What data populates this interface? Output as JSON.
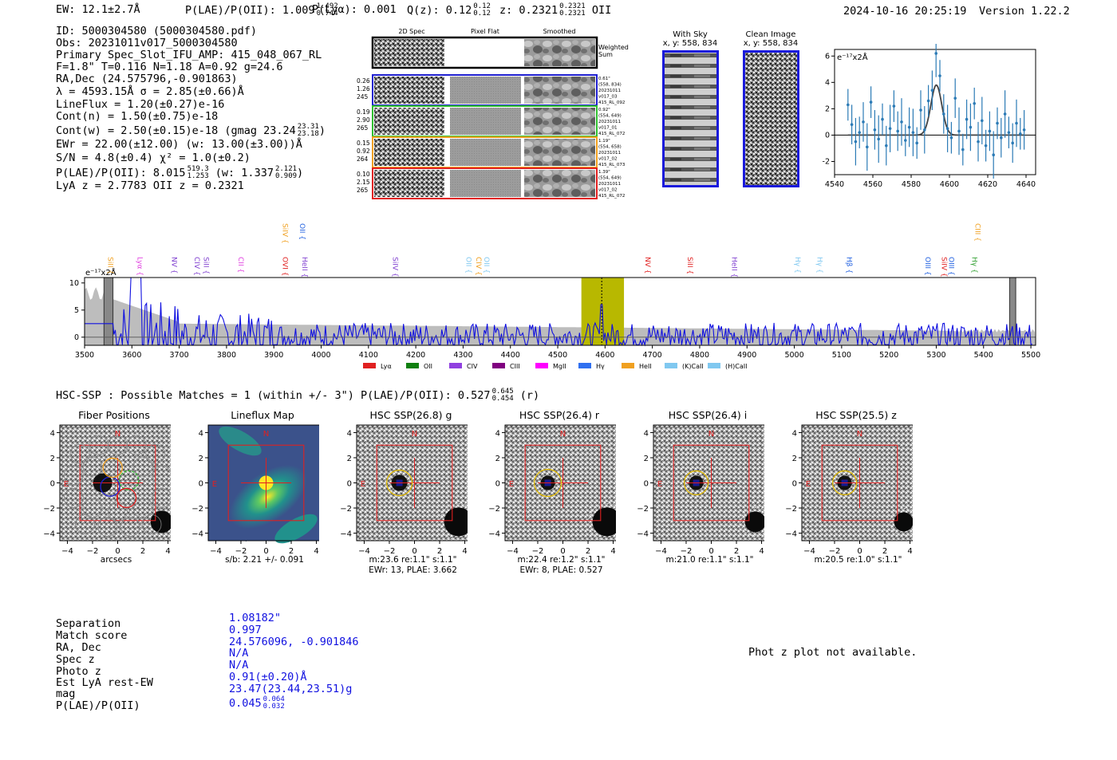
{
  "header": {
    "ew_text": "EW: 12.1±2.7Å",
    "plae_text": "P(LAE)/P(OII): 1.009",
    "plae_hi": "1.492",
    "plae_lo": "0.744",
    "plya_text": "P(Lyα): 0.001",
    "qz_text": "Q(z): 0.12",
    "qz_hi": "0.12",
    "qz_lo": "0.12",
    "z_text": "z: 0.2321",
    "z_hi": "0.2321",
    "z_lo": "0.2321",
    "z_line": "OII",
    "timestamp": "2024-10-16 20:25:19",
    "version": "Version 1.22.2"
  },
  "info": {
    "id": "ID: 5000304580 (5000304580.pdf)",
    "obs": "Obs: 20231011v017_5000304580",
    "slot": "Primary Spec_Slot_IFU_AMP: 415_048_067_RL",
    "params": "F=1.8\"  T=0.116  N=1.18  A=0.92  g=24.6",
    "radec": "RA,Dec (24.575796,-0.901863)",
    "lambda": "λ = 4593.15Å  σ = 2.85(±0.66)Å",
    "lineflux": "LineFlux = 1.20(±0.27)e-16",
    "contn": "Cont(n) = 1.50(±0.75)e-18",
    "contw": "Cont(w) = 2.50(±0.15)e-18 (gmag 23.24",
    "contw_hi": "23.31",
    "contw_lo": "23.18",
    "contw_end": ")",
    "ewr": "EWr = 22.00(±12.00) (w: 13.00(±3.00))Å",
    "sn": "S/N = 4.8(±0.4)  χ² = 1.0(±0.2)",
    "plae": "P(LAE)/P(OII): 8.015",
    "plae_hi": "519.3",
    "plae_lo": "1.253",
    "plae_w": "(w: 1.337",
    "plae_w_hi": "2.121",
    "plae_w_lo": "0.909",
    "plae_w_end": ")",
    "lyaz": "LyA z = 2.7783  OII z = 0.2321"
  },
  "cutouts": {
    "col_labels": [
      "2D Spec",
      "Pixel Flat",
      "Smoothed"
    ],
    "weighted_label": "Weighted\nSum",
    "rows": [
      {
        "left": [
          "0.26",
          "1.26",
          "245"
        ],
        "right": [
          "0.61\"",
          "(558, 834)",
          "20231011",
          "v017_03",
          "415_RL_092"
        ],
        "color": "#2020d0"
      },
      {
        "left": [
          "0.19",
          "2.90",
          "265"
        ],
        "right": [
          "0.92\"",
          "(554, 649)",
          "20231011",
          "v017_01",
          "415_RL_072"
        ],
        "color": "#30c030"
      },
      {
        "left": [
          "0.15",
          "0.92",
          "264"
        ],
        "right": [
          "1.19\"",
          "(554, 658)",
          "20231011",
          "v017_02",
          "415_RL_073"
        ],
        "color": "#f0a020"
      },
      {
        "left": [
          "0.10",
          "2.15",
          "265"
        ],
        "right": [
          "1.39\"",
          "(554, 649)",
          "20231011",
          "v017_02",
          "415_RL_072"
        ],
        "color": "#e02020"
      }
    ]
  },
  "with_sky": {
    "title": "With Sky",
    "coords": "x, y: 558, 834"
  },
  "clean_image": {
    "title": "Clean Image",
    "coords": "x, y: 558, 834"
  },
  "line_fit": {
    "unit_label": "e⁻¹⁷x2Å",
    "x_ticks": [
      "4540",
      "4560",
      "4580",
      "4600",
      "4620",
      "4640"
    ],
    "y_ticks": [
      "6",
      "4",
      "2",
      "0",
      "-2"
    ]
  },
  "full_spectrum": {
    "unit_label": "e⁻¹⁷x2Å",
    "x_ticks": [
      "3500",
      "3600",
      "3700",
      "3800",
      "3900",
      "4000",
      "4100",
      "4200",
      "4300",
      "4400",
      "4500",
      "4600",
      "4700",
      "4800",
      "4900",
      "5000",
      "5100",
      "5200",
      "5300",
      "5400",
      "5500"
    ],
    "y_ticks": [
      "10",
      "5",
      "0"
    ],
    "lines": [
      {
        "name": "SiII",
        "color": "#f0a020",
        "wave": 3545
      },
      {
        "name": "Lyα",
        "color": "#e040e0",
        "wave": 3607
      },
      {
        "name": "NV",
        "color": "#8040d0",
        "wave": 3680
      },
      {
        "name": "CIV",
        "color": "#8040d0",
        "wave": 3728
      },
      {
        "name": "SiII",
        "color": "#8040d0",
        "wave": 3747
      },
      {
        "name": "CII",
        "color": "#e040e0",
        "wave": 3820
      },
      {
        "name": "SiIV",
        "color": "#f0a020",
        "wave": 3914
      },
      {
        "name": "OII",
        "color": "#2060e0",
        "wave": 3950
      },
      {
        "name": "OVI",
        "color": "#e02020",
        "wave": 3914
      },
      {
        "name": "HeII",
        "color": "#8040d0",
        "wave": 3955
      },
      {
        "name": "SiIV",
        "color": "#8040d0",
        "wave": 4147
      },
      {
        "name": "OII",
        "color": "#80c8f0",
        "wave": 4302
      },
      {
        "name": "CIV",
        "color": "#f0a020",
        "wave": 4323
      },
      {
        "name": "OII",
        "color": "#80c8f0",
        "wave": 4340
      },
      {
        "name": "NV",
        "color": "#e02020",
        "wave": 4680
      },
      {
        "name": "SiII",
        "color": "#e02020",
        "wave": 4770
      },
      {
        "name": "HeII",
        "color": "#8040d0",
        "wave": 4863
      },
      {
        "name": "Hγ",
        "color": "#80c8f0",
        "wave": 4997
      },
      {
        "name": "Hγ",
        "color": "#80c8f0",
        "wave": 5044
      },
      {
        "name": "Hβ",
        "color": "#2060e0",
        "wave": 5106
      },
      {
        "name": "OIII",
        "color": "#2060e0",
        "wave": 5272
      },
      {
        "name": "SiIV",
        "color": "#e02020",
        "wave": 5307
      },
      {
        "name": "OIII",
        "color": "#2060e0",
        "wave": 5322
      },
      {
        "name": "CIII",
        "color": "#f0a020",
        "wave": 5378
      },
      {
        "name": "Hγ",
        "color": "#30a030",
        "wave": 5371
      }
    ],
    "legend": [
      {
        "name": "Lyα",
        "color": "#e02020"
      },
      {
        "name": "OII",
        "color": "#108010"
      },
      {
        "name": "CIV",
        "color": "#9040e0"
      },
      {
        "name": "CIII",
        "color": "#800080"
      },
      {
        "name": "MgII",
        "color": "#ff00ff"
      },
      {
        "name": "Hγ",
        "color": "#3070f0"
      },
      {
        "name": "HeII",
        "color": "#f0a020"
      },
      {
        "name": "(K)CaII",
        "color": "#80c8f0"
      },
      {
        "name": "(H)CaII",
        "color": "#80c8f0"
      }
    ]
  },
  "hsc": {
    "title": "HSC-SSP : Possible Matches = 1 (within +/- 3\")  P(LAE)/P(OII): 0.527",
    "title_hi": "0.645",
    "title_lo": "0.454",
    "title_end": "(r)",
    "panels": [
      {
        "title": "Fiber Positions",
        "caption1": "arcsecs",
        "caption2": ""
      },
      {
        "title": "Lineflux Map",
        "caption1": "s/b: 2.21 +/- 0.091",
        "caption2": ""
      },
      {
        "title": "HSC SSP(26.8) g",
        "caption1": "m:23.6  re:1.1\"  s:1.1\"",
        "caption2": "EWr: 13, PLAE: 3.662"
      },
      {
        "title": "HSC SSP(26.4) r",
        "caption1": "m:22.4  re:1.2\"  s:1.1\"",
        "caption2": "EWr: 8, PLAE: 0.527"
      },
      {
        "title": "HSC SSP(26.4) i",
        "caption1": "m:21.0  re:1.1\"  s:1.1\"",
        "caption2": ""
      },
      {
        "title": "HSC SSP(25.5) z",
        "caption1": "m:20.5  re:1.0\"  s:1.1\"",
        "caption2": ""
      }
    ],
    "axis_ticks": [
      "4",
      "2",
      "0",
      "−2",
      "−4"
    ],
    "x_ticks": [
      "−4",
      "−2",
      "0",
      "2",
      "4"
    ],
    "north": "N",
    "east": "E"
  },
  "match_table": {
    "labels": [
      "Separation",
      "Match score",
      "RA, Dec",
      "Spec z",
      "Photo z",
      "Est LyA rest-EW",
      "mag",
      "P(LAE)/P(OII)"
    ],
    "values": [
      "1.08182\"",
      "0.997",
      "24.576096, -0.901846",
      "N/A",
      "N/A",
      "0.91(±0.20)Å",
      "23.47(23.44,23.51)g",
      "0.045"
    ],
    "plae_hi": "0.064",
    "plae_lo": "0.032"
  },
  "photz_note": "Phot z plot not available.",
  "chart_data": [
    {
      "type": "scatter",
      "title": "Emission line fit",
      "xlabel": "Wavelength (Å)",
      "ylabel": "e⁻¹⁷x2Å",
      "xlim": [
        4540,
        4645
      ],
      "ylim": [
        -3,
        6.5
      ],
      "x": [
        4547,
        4549,
        4551,
        4553,
        4555,
        4557,
        4559,
        4561,
        4563,
        4565,
        4567,
        4569,
        4571,
        4573,
        4575,
        4577,
        4579,
        4581,
        4583,
        4585,
        4587,
        4589,
        4591,
        4593,
        4595,
        4597,
        4599,
        4601,
        4603,
        4605,
        4607,
        4609,
        4611,
        4613,
        4615,
        4617,
        4619,
        4621,
        4623,
        4625,
        4627,
        4629,
        4631,
        4633,
        4635,
        4637,
        4639
      ],
      "y": [
        2.3,
        0.8,
        -0.5,
        0.2,
        1.0,
        -0.9,
        2.5,
        0.4,
        -0.3,
        1.2,
        -0.8,
        0.5,
        2.2,
        0.3,
        1.0,
        -0.4,
        0.6,
        0.2,
        -0.6,
        1.9,
        0.4,
        2.6,
        3.4,
        6.2,
        4.5,
        1.6,
        0.5,
        -0.2,
        2.8,
        0.3,
        -1.1,
        1.2,
        0.6,
        2.4,
        -0.5,
        1.1,
        -0.8,
        0.3,
        -1.5,
        0.9,
        -0.2,
        1.6,
        0.2,
        -0.6,
        0.9,
        0.1,
        0.4
      ],
      "fit_center": 4593.15,
      "fit_sigma": 2.85,
      "fit_amp": 3.8
    },
    {
      "type": "line",
      "title": "Full spectrum",
      "xlabel": "Wavelength (Å)",
      "ylabel": "e⁻¹⁷x2Å",
      "xlim": [
        3500,
        5510
      ],
      "ylim": [
        -1.5,
        11
      ],
      "highlight_band": [
        4550,
        4640
      ],
      "marker_wave": 4593
    }
  ]
}
